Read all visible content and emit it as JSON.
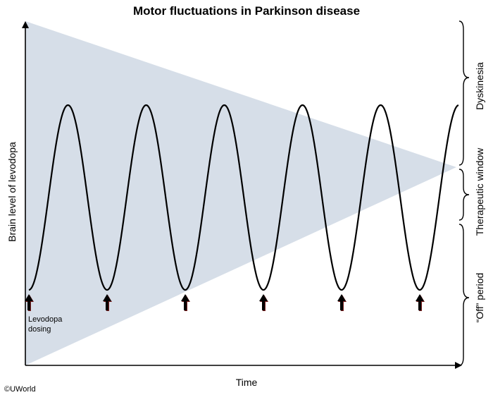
{
  "title": "Motor fluctuations in Parkinson disease",
  "axes": {
    "x_label": "Time",
    "y_label": "Brain level of levodopa"
  },
  "zones": {
    "top": "Dyskinesia",
    "middle": "Therapeutic window",
    "bottom": "“Off” period"
  },
  "dosing_label": [
    "Levodopa",
    "dosing"
  ],
  "dose_count": 6,
  "copyright": "©UWorld",
  "colors": {
    "window_fill": "#d6dee8",
    "curve": "#000000",
    "arrow": "#000000",
    "arrow_shadow": "#7a1f1f"
  }
}
